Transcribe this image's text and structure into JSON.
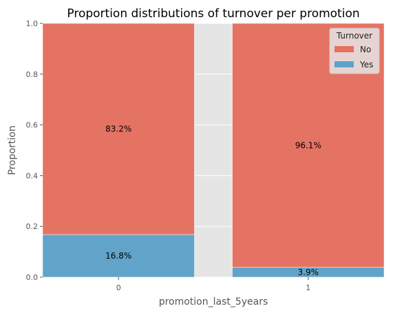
{
  "chart_data": {
    "type": "bar",
    "stacked": true,
    "title": "Proportion distributions of turnover per promotion",
    "xlabel": "promotion_last_5years",
    "ylabel": "Proportion",
    "ylim": [
      0,
      1
    ],
    "yticks": [
      "0.0",
      "0.2",
      "0.4",
      "0.6",
      "0.8",
      "1.0"
    ],
    "categories": [
      "0",
      "1"
    ],
    "series": [
      {
        "name": "Yes",
        "values": [
          0.168,
          0.039
        ],
        "labels": [
          "16.8%",
          "3.9%"
        ],
        "color": "#5fa2c8"
      },
      {
        "name": "No",
        "values": [
          0.832,
          0.961
        ],
        "labels": [
          "83.2%",
          "96.1%"
        ],
        "color": "#e47060"
      }
    ],
    "legend": {
      "title": "Turnover",
      "placement": "top-right",
      "order": [
        "No",
        "Yes"
      ]
    },
    "grid": true,
    "background_color": "#e5e5e5",
    "grid_color": "#ffffff"
  }
}
